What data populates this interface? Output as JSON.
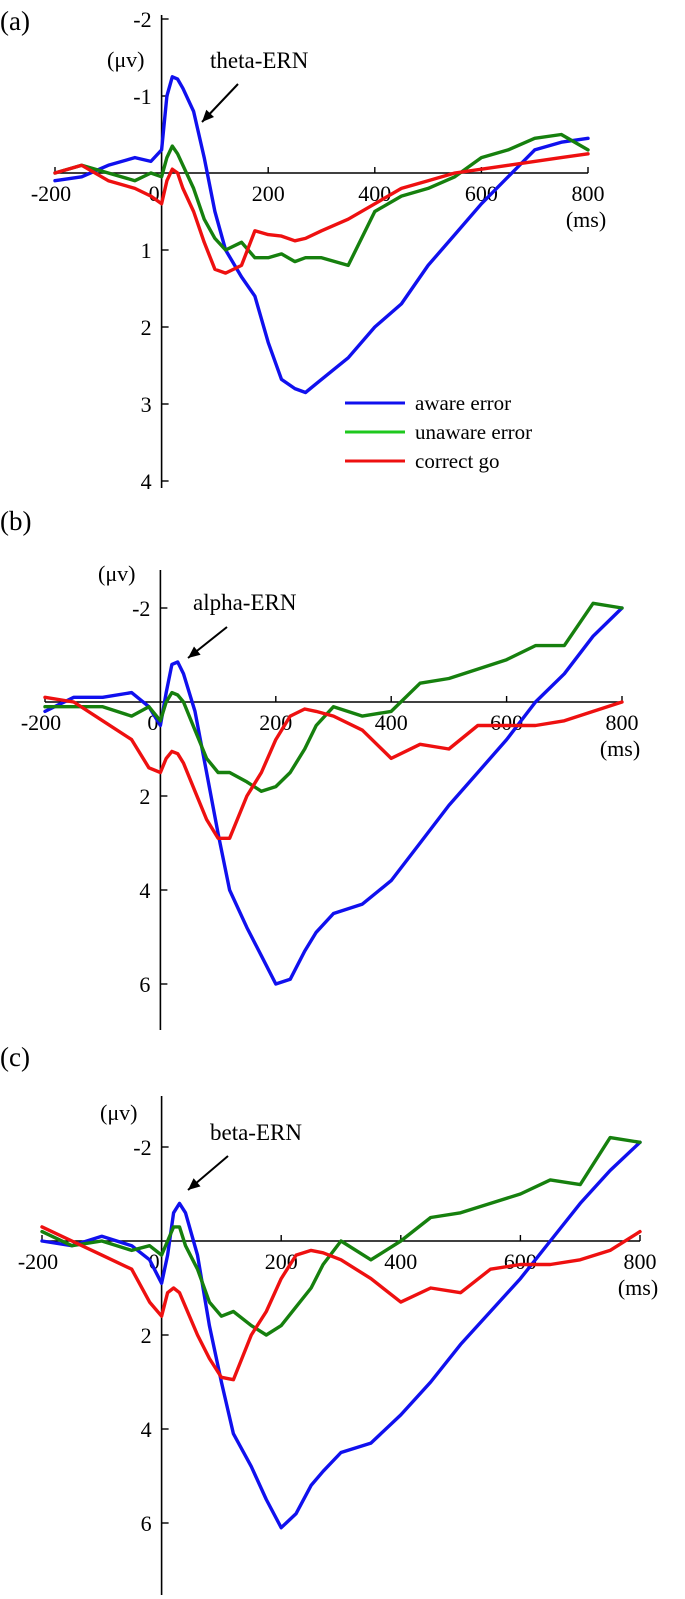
{
  "colors": {
    "aware_error": "#1010ee",
    "unaware_error": "#16800e",
    "correct_go": "#ee1010",
    "legend_green": "#1ec81e"
  },
  "legend": {
    "items": [
      "aware error",
      "unaware error",
      "correct go"
    ]
  },
  "chart_data": [
    {
      "type": "line",
      "panel_label": "(a)",
      "title": "",
      "xlabel": "(ms)",
      "ylabel": "(μv)",
      "annotation": {
        "text": "theta-ERN",
        "x": 20,
        "y": -1.2
      },
      "xlim": [
        -200,
        800
      ],
      "ylim": [
        -2,
        4
      ],
      "y_inverted": true,
      "x_ticks": [
        -200,
        0,
        200,
        400,
        600,
        800
      ],
      "x_tick_labels": [
        "-200",
        "0",
        "200",
        "400",
        "600",
        "800"
      ],
      "y_ticks": [
        -2,
        -1,
        1,
        2,
        3,
        4
      ],
      "y_tick_labels": [
        "-2",
        "-1",
        "1",
        "2",
        "3",
        "4"
      ],
      "legend_position": "bottom-right",
      "grid": false,
      "series": [
        {
          "name": "aware error",
          "color": "#1010ee",
          "x": [
            -200,
            -150,
            -100,
            -50,
            -20,
            0,
            10,
            20,
            30,
            40,
            60,
            80,
            100,
            120,
            150,
            175,
            200,
            225,
            250,
            270,
            300,
            350,
            400,
            450,
            500,
            550,
            600,
            650,
            700,
            750,
            800
          ],
          "y": [
            0.1,
            0.05,
            -0.1,
            -0.2,
            -0.15,
            -0.3,
            -1.0,
            -1.25,
            -1.22,
            -1.1,
            -0.8,
            -0.2,
            0.5,
            1.0,
            1.35,
            1.6,
            2.2,
            2.68,
            2.8,
            2.85,
            2.68,
            2.4,
            2.0,
            1.7,
            1.2,
            0.8,
            0.4,
            0.05,
            -0.3,
            -0.4,
            -0.45
          ]
        },
        {
          "name": "unaware error",
          "color": "#16800e",
          "x": [
            -200,
            -150,
            -100,
            -50,
            -20,
            0,
            10,
            20,
            30,
            40,
            60,
            80,
            100,
            120,
            150,
            175,
            200,
            225,
            250,
            270,
            300,
            350,
            400,
            450,
            500,
            550,
            600,
            650,
            700,
            750,
            800
          ],
          "y": [
            0.0,
            -0.1,
            0.0,
            0.1,
            0.0,
            0.05,
            -0.2,
            -0.35,
            -0.25,
            -0.1,
            0.2,
            0.6,
            0.85,
            1.0,
            0.9,
            1.1,
            1.1,
            1.05,
            1.15,
            1.1,
            1.1,
            1.2,
            0.5,
            0.3,
            0.2,
            0.05,
            -0.2,
            -0.3,
            -0.45,
            -0.5,
            -0.3
          ]
        },
        {
          "name": "correct go",
          "color": "#ee1010",
          "x": [
            -200,
            -150,
            -100,
            -50,
            -20,
            0,
            10,
            20,
            30,
            40,
            60,
            80,
            100,
            120,
            150,
            175,
            200,
            225,
            250,
            270,
            300,
            350,
            400,
            450,
            500,
            550,
            600,
            650,
            700,
            750,
            800
          ],
          "y": [
            0.0,
            -0.1,
            0.1,
            0.2,
            0.3,
            0.4,
            0.1,
            -0.05,
            0.0,
            0.2,
            0.5,
            0.9,
            1.25,
            1.3,
            1.2,
            0.75,
            0.8,
            0.82,
            0.88,
            0.85,
            0.75,
            0.6,
            0.4,
            0.2,
            0.1,
            0.0,
            -0.05,
            -0.1,
            -0.15,
            -0.2,
            -0.25
          ]
        }
      ]
    },
    {
      "type": "line",
      "panel_label": "(b)",
      "title": "",
      "xlabel": "(ms)",
      "ylabel": "(μv)",
      "annotation": {
        "text": "alpha-ERN",
        "x": 20,
        "y": -0.9
      },
      "xlim": [
        -200,
        800
      ],
      "ylim": [
        -3,
        7
      ],
      "y_inverted": true,
      "x_ticks": [
        -200,
        0,
        200,
        400,
        600,
        800
      ],
      "x_tick_labels": [
        "-200",
        "0",
        "200",
        "400",
        "600",
        "800"
      ],
      "y_ticks": [
        -2,
        2,
        4,
        6
      ],
      "y_tick_labels": [
        "-2",
        "2",
        "4",
        "6"
      ],
      "grid": false,
      "series": [
        {
          "name": "aware error",
          "color": "#1010ee",
          "x": [
            -200,
            -150,
            -100,
            -50,
            -20,
            0,
            10,
            20,
            30,
            40,
            60,
            80,
            100,
            120,
            150,
            175,
            200,
            225,
            250,
            270,
            300,
            350,
            400,
            450,
            500,
            550,
            600,
            650,
            700,
            750,
            800
          ],
          "y": [
            0.2,
            -0.1,
            -0.1,
            -0.2,
            0.1,
            0.5,
            -0.2,
            -0.8,
            -0.85,
            -0.6,
            0.2,
            1.5,
            2.8,
            4.0,
            4.8,
            5.4,
            6.0,
            5.9,
            5.3,
            4.9,
            4.5,
            4.3,
            3.8,
            3.0,
            2.2,
            1.5,
            0.8,
            0.0,
            -0.6,
            -1.4,
            -2.0
          ]
        },
        {
          "name": "unaware error",
          "color": "#16800e",
          "x": [
            -200,
            -150,
            -100,
            -50,
            -20,
            0,
            10,
            20,
            30,
            40,
            60,
            80,
            100,
            120,
            150,
            175,
            200,
            225,
            250,
            270,
            300,
            350,
            400,
            450,
            500,
            550,
            600,
            650,
            700,
            750,
            800
          ],
          "y": [
            0.1,
            0.1,
            0.1,
            0.3,
            0.1,
            0.4,
            0.0,
            -0.2,
            -0.15,
            0.0,
            0.6,
            1.2,
            1.5,
            1.5,
            1.7,
            1.9,
            1.8,
            1.5,
            1.0,
            0.5,
            0.1,
            0.3,
            0.2,
            -0.4,
            -0.5,
            -0.7,
            -0.9,
            -1.2,
            -1.2,
            -2.1,
            -2.0
          ]
        },
        {
          "name": "correct go",
          "color": "#ee1010",
          "x": [
            -200,
            -150,
            -100,
            -50,
            -20,
            0,
            10,
            20,
            30,
            40,
            60,
            80,
            100,
            120,
            150,
            175,
            200,
            225,
            250,
            270,
            300,
            350,
            400,
            450,
            500,
            550,
            600,
            650,
            700,
            750,
            800
          ],
          "y": [
            -0.1,
            0.0,
            0.4,
            0.8,
            1.4,
            1.5,
            1.2,
            1.05,
            1.1,
            1.3,
            1.9,
            2.5,
            2.9,
            2.9,
            2.0,
            1.5,
            0.8,
            0.3,
            0.15,
            0.2,
            0.3,
            0.6,
            1.2,
            0.9,
            1.0,
            0.5,
            0.5,
            0.5,
            0.4,
            0.2,
            0.0
          ]
        }
      ]
    },
    {
      "type": "line",
      "panel_label": "(c)",
      "title": "",
      "xlabel": "(ms)",
      "ylabel": "(μv)",
      "annotation": {
        "text": "beta-ERN",
        "x": 20,
        "y": -1.0
      },
      "xlim": [
        -200,
        800
      ],
      "ylim": [
        -3,
        7
      ],
      "y_inverted": true,
      "x_ticks": [
        -200,
        0,
        200,
        400,
        600,
        800
      ],
      "x_tick_labels": [
        "-200",
        "0",
        "200",
        "400",
        "600",
        "800"
      ],
      "y_ticks": [
        -2,
        2,
        4,
        6
      ],
      "y_tick_labels": [
        "-2",
        "2",
        "4",
        "6"
      ],
      "grid": false,
      "series": [
        {
          "name": "aware error",
          "color": "#1010ee",
          "x": [
            -200,
            -150,
            -100,
            -50,
            -20,
            0,
            10,
            20,
            30,
            40,
            60,
            80,
            100,
            120,
            150,
            175,
            200,
            225,
            250,
            270,
            300,
            350,
            400,
            450,
            500,
            550,
            600,
            650,
            700,
            750,
            800
          ],
          "y": [
            0.0,
            0.1,
            -0.1,
            0.1,
            0.4,
            0.9,
            0.3,
            -0.6,
            -0.8,
            -0.6,
            0.3,
            1.8,
            3.0,
            4.1,
            4.8,
            5.5,
            6.1,
            5.8,
            5.2,
            4.9,
            4.5,
            4.3,
            3.7,
            3.0,
            2.2,
            1.5,
            0.8,
            0.0,
            -0.8,
            -1.5,
            -2.1
          ]
        },
        {
          "name": "unaware error",
          "color": "#16800e",
          "x": [
            -200,
            -150,
            -100,
            -50,
            -20,
            0,
            10,
            20,
            30,
            40,
            60,
            80,
            100,
            120,
            150,
            175,
            200,
            225,
            250,
            270,
            300,
            350,
            400,
            450,
            500,
            550,
            600,
            650,
            700,
            750,
            800
          ],
          "y": [
            -0.2,
            0.1,
            0.0,
            0.2,
            0.1,
            0.3,
            0.0,
            -0.3,
            -0.3,
            0.1,
            0.6,
            1.3,
            1.6,
            1.5,
            1.8,
            2.0,
            1.8,
            1.4,
            1.0,
            0.5,
            0.0,
            0.4,
            0.0,
            -0.5,
            -0.6,
            -0.8,
            -1.0,
            -1.3,
            -1.2,
            -2.2,
            -2.1
          ]
        },
        {
          "name": "correct go",
          "color": "#ee1010",
          "x": [
            -200,
            -150,
            -100,
            -50,
            -20,
            0,
            10,
            20,
            30,
            40,
            60,
            80,
            100,
            120,
            150,
            175,
            200,
            225,
            250,
            270,
            300,
            350,
            400,
            450,
            500,
            550,
            600,
            650,
            700,
            750,
            800
          ],
          "y": [
            -0.3,
            0.0,
            0.3,
            0.6,
            1.3,
            1.6,
            1.1,
            1.0,
            1.1,
            1.4,
            2.0,
            2.5,
            2.9,
            2.95,
            2.0,
            1.5,
            0.8,
            0.3,
            0.2,
            0.25,
            0.4,
            0.8,
            1.3,
            1.0,
            1.1,
            0.6,
            0.5,
            0.5,
            0.4,
            0.2,
            -0.2
          ]
        }
      ]
    }
  ]
}
